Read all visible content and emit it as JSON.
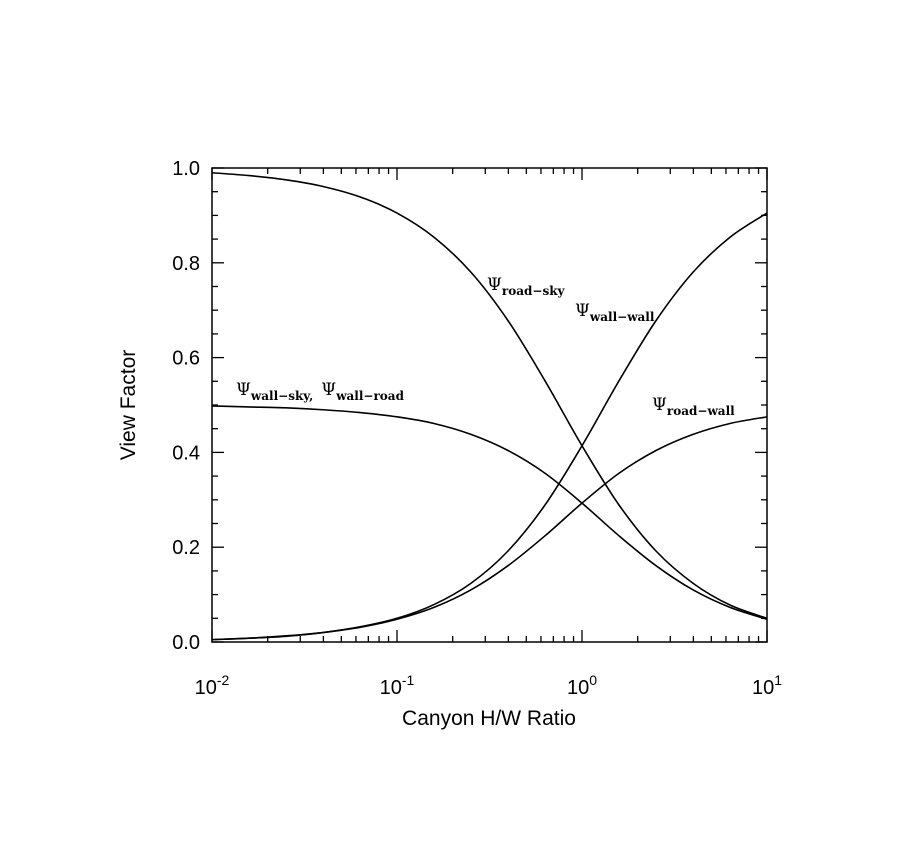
{
  "chart_data": {
    "type": "line",
    "x_label": "Canyon H/W Ratio",
    "y_label": "View Factor",
    "xscale": "log",
    "x": [
      0.01,
      0.01585,
      0.02512,
      0.03981,
      0.0631,
      0.1,
      0.1585,
      0.2512,
      0.3981,
      0.631,
      1,
      1.585,
      2.512,
      3.981,
      6.31,
      10
    ],
    "series": [
      {
        "color": "#000000",
        "label": [
          {
            "symbol": "Ψ",
            "sub": "road−sky"
          }
        ],
        "values": [
          0.99,
          0.984,
          0.975,
          0.961,
          0.939,
          0.905,
          0.854,
          0.78,
          0.678,
          0.551,
          0.414,
          0.289,
          0.192,
          0.124,
          0.078,
          0.05
        ]
      },
      {
        "color": "#000000",
        "label": [
          {
            "symbol": "Ψ",
            "sub": "wall−wall"
          }
        ],
        "values": [
          0.005,
          0.008,
          0.013,
          0.02,
          0.032,
          0.05,
          0.079,
          0.124,
          0.192,
          0.289,
          0.414,
          0.551,
          0.678,
          0.78,
          0.854,
          0.905
        ]
      },
      {
        "color": "#000000",
        "label": [
          {
            "symbol": "Ψ",
            "sub": "wall−sky,"
          },
          {
            "symbol": "Ψ",
            "sub": "wall−road"
          }
        ],
        "values": [
          0.498,
          0.496,
          0.494,
          0.49,
          0.484,
          0.475,
          0.461,
          0.438,
          0.404,
          0.356,
          0.293,
          0.224,
          0.161,
          0.11,
          0.073,
          0.048
        ]
      },
      {
        "color": "#000000",
        "label": [
          {
            "symbol": "Ψ",
            "sub": "road−wall"
          }
        ],
        "values": [
          0.005,
          0.008,
          0.012,
          0.02,
          0.031,
          0.048,
          0.073,
          0.11,
          0.161,
          0.224,
          0.293,
          0.356,
          0.404,
          0.438,
          0.461,
          0.475
        ]
      }
    ],
    "xlim": [
      0.01,
      10
    ],
    "ylim": [
      0,
      1
    ],
    "xticks": [
      {
        "value": 0.01,
        "label": {
          "base": "10",
          "exp": "-2"
        }
      },
      {
        "value": 0.1,
        "label": {
          "base": "10",
          "exp": "-1"
        }
      },
      {
        "value": 1,
        "label": {
          "base": "10",
          "exp": "0"
        }
      },
      {
        "value": 10,
        "label": {
          "base": "10",
          "exp": "1"
        }
      }
    ],
    "yticks": [
      {
        "value": 0,
        "label": "0.0"
      },
      {
        "value": 0.2,
        "label": "0.2"
      },
      {
        "value": 0.4,
        "label": "0.4"
      },
      {
        "value": 0.6,
        "label": "0.6"
      },
      {
        "value": 0.8,
        "label": "0.8"
      },
      {
        "value": 1,
        "label": "1.0"
      }
    ],
    "grid": false
  }
}
